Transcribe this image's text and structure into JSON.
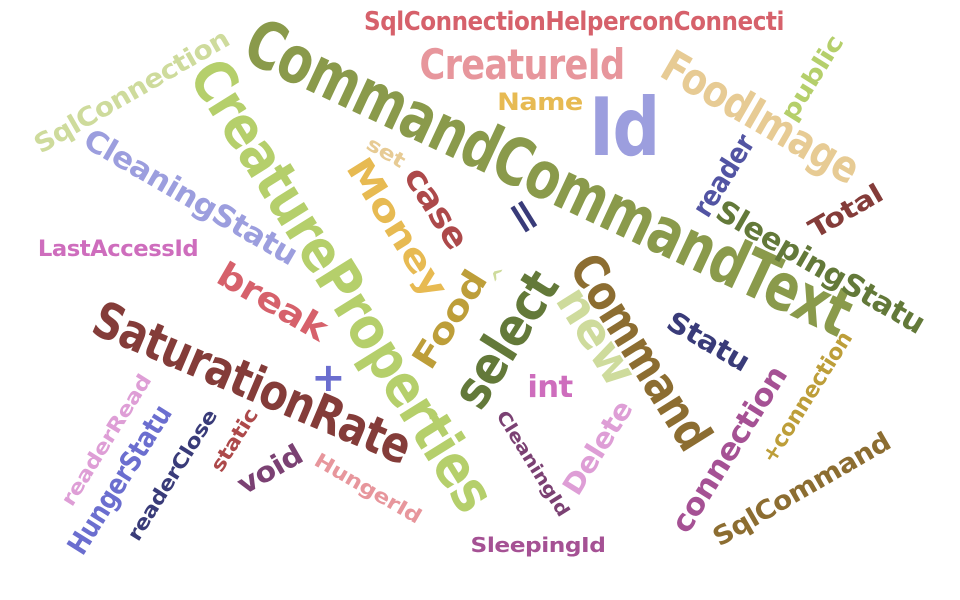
{
  "words": [
    {
      "text": "CommandCommandText",
      "color": "#8a9a4b"
    },
    {
      "text": "CreatureProperties",
      "color": "#b5cf6b"
    },
    {
      "text": "SaturationRate",
      "color": "#843c39"
    },
    {
      "text": "Command",
      "color": "#8c6d31"
    },
    {
      "text": "FoodImage",
      "color": "#e7cb94"
    },
    {
      "text": "CreatureId",
      "color": "#e7969c"
    },
    {
      "text": "Id",
      "color": "#9c9ede"
    },
    {
      "text": "select",
      "color": "#637939"
    },
    {
      "text": "SqlConnectionHelperconConnecti",
      "color": "#d6616b"
    },
    {
      "text": "SqlConnection",
      "color": "#cedb9c"
    },
    {
      "text": "CleaningStatu",
      "color": "#9c9ede"
    },
    {
      "text": "Money",
      "color": "#e7ba52"
    },
    {
      "text": "case",
      "color": "#ad494a"
    },
    {
      "text": "break",
      "color": "#d6616b"
    },
    {
      "text": "Food",
      "color": "#bd9e39"
    },
    {
      "text": "new",
      "color": "#cedb9c"
    },
    {
      "text": "SleepingStatu",
      "color": "#637939"
    },
    {
      "text": "Statu",
      "color": "#393b79"
    },
    {
      "text": "connection",
      "color": "#a55194"
    },
    {
      "text": "+connection",
      "color": "#bd9e39"
    },
    {
      "text": "SqlCommand",
      "color": "#8c6d31"
    },
    {
      "text": "Total",
      "color": "#843c39"
    },
    {
      "text": "reader",
      "color": "#5254a3"
    },
    {
      "text": "public",
      "color": "#b5cf6b"
    },
    {
      "text": "Name",
      "color": "#e7ba52"
    },
    {
      "text": "set",
      "color": "#e7cb94"
    },
    {
      "text": "LastAccessId",
      "color": "#ce6dbd"
    },
    {
      "text": "HungerStatu",
      "color": "#6b6ecf"
    },
    {
      "text": "readerRead",
      "color": "#de9ed6"
    },
    {
      "text": "readerClose",
      "color": "#393b79"
    },
    {
      "text": "static",
      "color": "#ad494a"
    },
    {
      "text": "void",
      "color": "#7b4173"
    },
    {
      "text": "HungerId",
      "color": "#e7969c"
    },
    {
      "text": "CleaningId",
      "color": "#7b4173"
    },
    {
      "text": "SleepingId",
      "color": "#a55194"
    },
    {
      "text": "Delete",
      "color": "#de9ed6"
    },
    {
      "text": "int",
      "color": "#ce6dbd"
    },
    {
      "text": "+",
      "color": "#6b6ecf"
    },
    {
      "text": "=",
      "color": "#393b79"
    },
    {
      "text": "^",
      "color": "#cedb9c"
    }
  ]
}
